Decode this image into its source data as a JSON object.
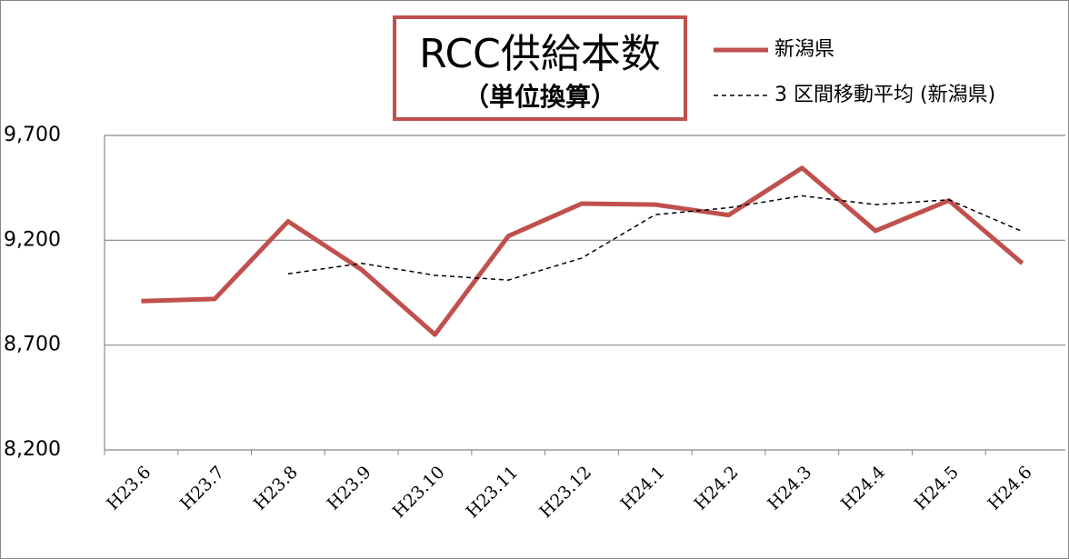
{
  "chart_data": {
    "type": "line",
    "title": "RCC供給本数",
    "subtitle": "（単位換算）",
    "categories": [
      "H23.6",
      "H23.7",
      "H23.8",
      "H23.9",
      "H23.10",
      "H23.11",
      "H23.12",
      "H24.1",
      "H24.2",
      "H24.3",
      "H24.4",
      "H24.5",
      "H24.6"
    ],
    "series": [
      {
        "name": "新潟県",
        "color": "#c0504d",
        "style": "solid",
        "values": [
          8910,
          8920,
          9290,
          9060,
          8750,
          9220,
          9375,
          9370,
          9320,
          9545,
          9245,
          9390,
          9090
        ]
      },
      {
        "name": "3 区間移動平均 (新潟県)",
        "color": "#000000",
        "style": "dashed",
        "values": [
          null,
          null,
          9040,
          9090,
          9033,
          9010,
          9115,
          9322,
          9355,
          9412,
          9370,
          9393,
          9242
        ]
      }
    ],
    "ylim": [
      8200,
      9700
    ],
    "yticks": [
      {
        "value": 8200,
        "label": "8,200"
      },
      {
        "value": 8700,
        "label": "8,700"
      },
      {
        "value": 9200,
        "label": "9,200"
      },
      {
        "value": 9700,
        "label": "9,700"
      }
    ],
    "grid": true
  }
}
